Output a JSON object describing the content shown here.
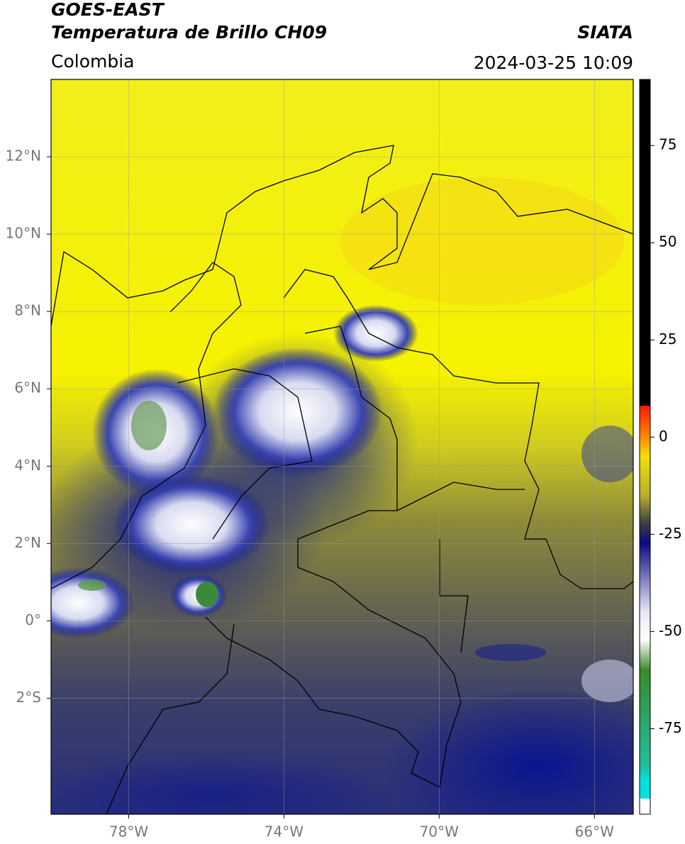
{
  "header": {
    "title": "GOES-EAST",
    "subtitle": "Temperatura de Brillo CH09",
    "source": "SIATA",
    "region": "Colombia",
    "datetime": "2024-03-25 10:09"
  },
  "map": {
    "xlim": [
      -80,
      -65
    ],
    "ylim": [
      -5,
      14
    ],
    "grid": true,
    "xticks": [
      {
        "value": -78,
        "label": "78°W"
      },
      {
        "value": -74,
        "label": "74°W"
      },
      {
        "value": -70,
        "label": "70°W"
      },
      {
        "value": -66,
        "label": "66°W"
      }
    ],
    "yticks": [
      {
        "value": 12,
        "label": "12°N"
      },
      {
        "value": 10,
        "label": "10°N"
      },
      {
        "value": 8,
        "label": "8°N"
      },
      {
        "value": 6,
        "label": "6°N"
      },
      {
        "value": 4,
        "label": "4°N"
      },
      {
        "value": 2,
        "label": "2°N"
      },
      {
        "value": 0,
        "label": "0°"
      },
      {
        "value": -2,
        "label": "2°S"
      }
    ]
  },
  "colorbar": {
    "lim": [
      -97,
      92
    ],
    "ticks": [
      75,
      50,
      25,
      0,
      -25,
      -50,
      -75
    ]
  }
}
